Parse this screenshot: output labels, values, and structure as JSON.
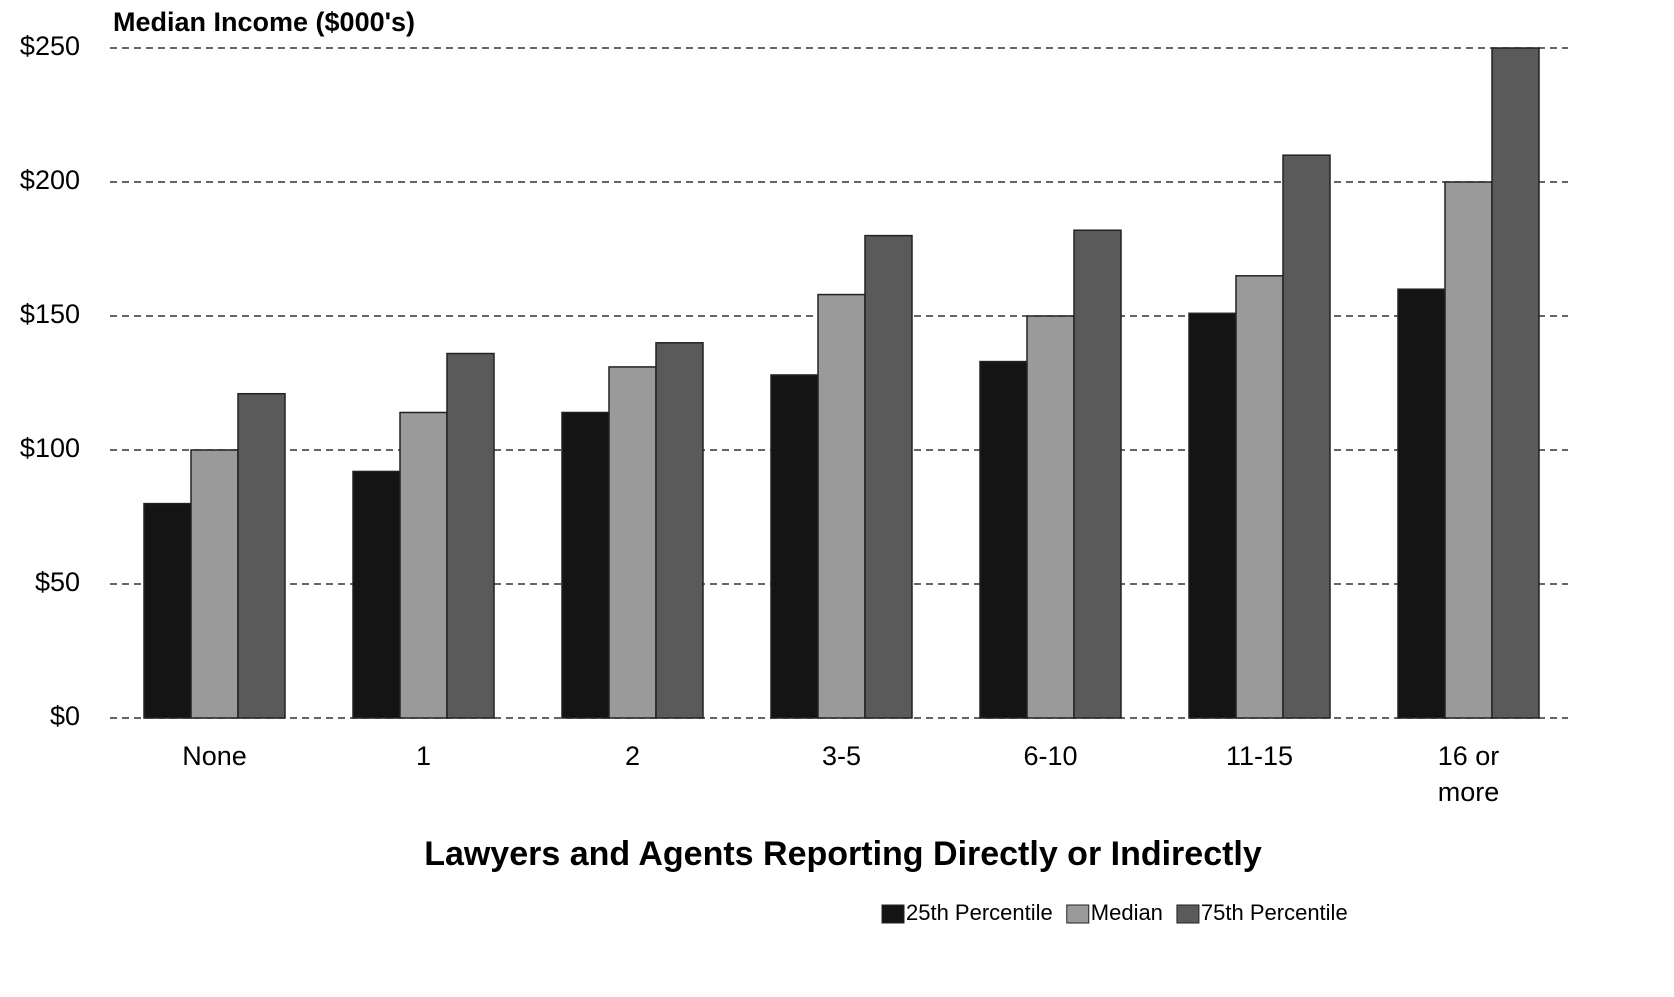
{
  "chart_data": {
    "type": "bar",
    "title": "Median Income ($000's)",
    "x_label": "Lawyers and Agents Reporting Directly or Indirectly",
    "categories": [
      "None",
      "1",
      "2",
      "3-5",
      "6-10",
      "11-15",
      "16 or more"
    ],
    "series": [
      {
        "name": "25th Percentile",
        "color": "#141414",
        "values": [
          80,
          92,
          114,
          128,
          133,
          151,
          160
        ]
      },
      {
        "name": "Median",
        "color": "#9a9a9a",
        "values": [
          100,
          114,
          131,
          158,
          150,
          165,
          200
        ]
      },
      {
        "name": "75th Percentile",
        "color": "#5a5a5a",
        "values": [
          121,
          136,
          140,
          180,
          182,
          210,
          250
        ]
      }
    ],
    "ylim": [
      0,
      250
    ],
    "yticks": [
      {
        "value": 0,
        "label": "$0"
      },
      {
        "value": 50,
        "label": "$50"
      },
      {
        "value": 100,
        "label": "$100"
      },
      {
        "value": 150,
        "label": "$150"
      },
      {
        "value": 200,
        "label": "$200"
      },
      {
        "value": 250,
        "label": "$250"
      }
    ],
    "grid": true,
    "legend": "bottom-right"
  }
}
